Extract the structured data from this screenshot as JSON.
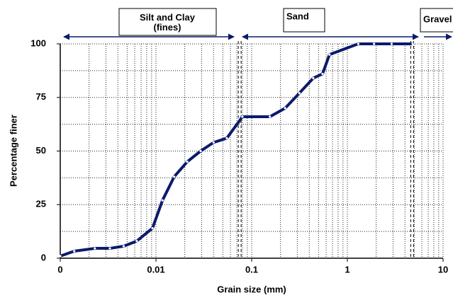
{
  "chart_data": {
    "type": "line",
    "x_label": "Grain size (mm)",
    "y_label": "Percentage finer",
    "annotations": [
      "Silt and Clay\n(fines)",
      "Sand",
      "Gravel"
    ],
    "x": [
      0.001,
      0.0014,
      0.0023,
      0.0033,
      0.0046,
      0.0063,
      0.0092,
      0.0117,
      0.0155,
      0.0212,
      0.0293,
      0.04,
      0.055,
      0.08,
      0.155,
      0.224,
      0.315,
      0.44,
      0.55,
      0.65,
      1.3,
      1.9,
      2.9,
      4.8
    ],
    "series": [
      {
        "name": "Percentage finer",
        "color": "#0b1a6b",
        "values": [
          1,
          3.3,
          4.6,
          4.6,
          5.6,
          8,
          14,
          27,
          38,
          45,
          50,
          54,
          56,
          66,
          66,
          70,
          77,
          84,
          86,
          95,
          100,
          100,
          100,
          100
        ]
      }
    ],
    "xlim": [
      0.001,
      10
    ],
    "xticks": [
      {
        "value": 0.001,
        "label": "0"
      },
      0.01,
      0.1,
      1,
      10
    ],
    "ylim": [
      0,
      100
    ],
    "yticks": [
      0,
      25,
      50,
      75,
      100
    ],
    "x_log": true,
    "grid": true,
    "boundaries": [
      0.075,
      4.75
    ]
  }
}
